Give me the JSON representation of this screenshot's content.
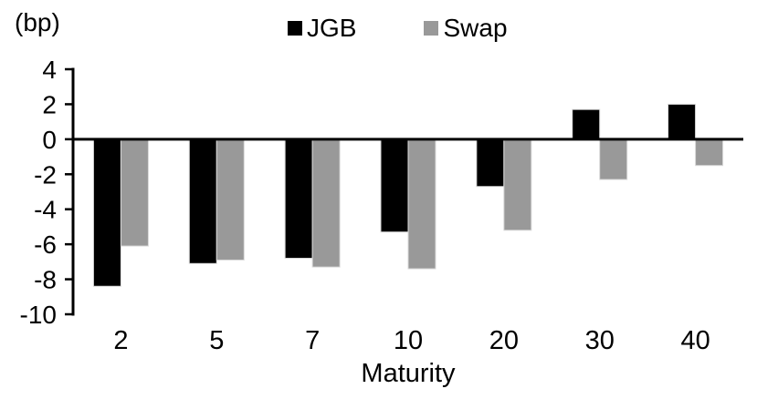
{
  "chart_data": {
    "type": "bar",
    "title": "",
    "unit_label": "(bp)",
    "xlabel": "Maturity",
    "ylabel": "",
    "categories": [
      "2",
      "5",
      "7",
      "10",
      "20",
      "30",
      "40"
    ],
    "series": [
      {
        "name": "JGB",
        "color": "#000000",
        "values": [
          -8.4,
          -7.1,
          -6.8,
          -5.3,
          -2.7,
          1.7,
          2.0
        ]
      },
      {
        "name": "Swap",
        "color": "#999999",
        "values": [
          -6.1,
          -6.9,
          -7.3,
          -7.4,
          -5.2,
          -2.3,
          -1.5
        ]
      }
    ],
    "ylim": [
      -10,
      4
    ],
    "yticks": [
      4,
      2,
      0,
      -2,
      -4,
      -6,
      -8,
      -10
    ],
    "legend_position": "top-center",
    "grid": false,
    "axis_color": "#000000"
  }
}
